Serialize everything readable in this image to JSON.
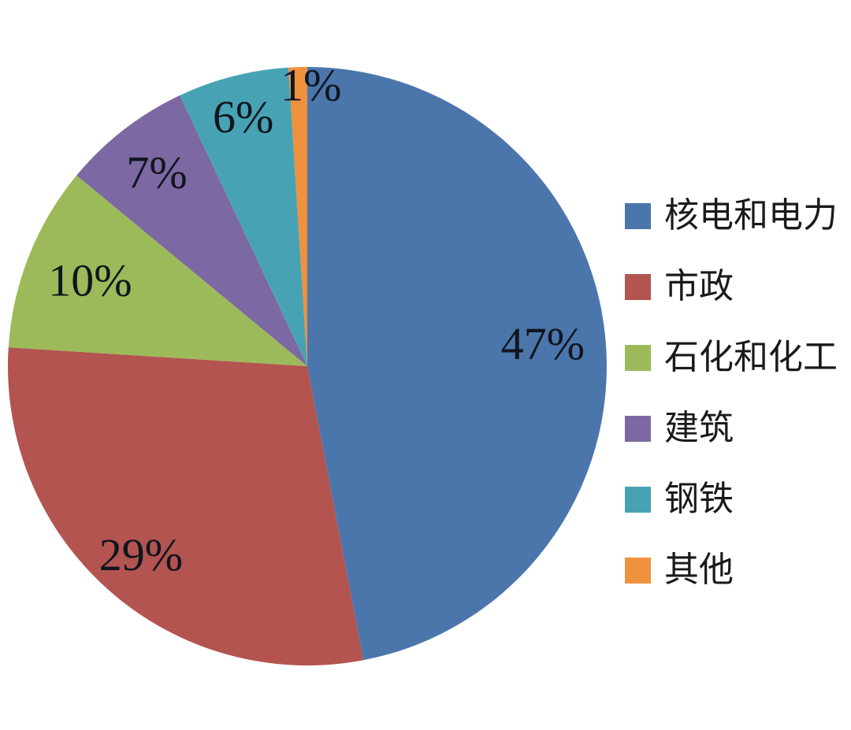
{
  "chart_data": {
    "type": "pie",
    "title": "",
    "categories": [
      "核电和电力",
      "市政",
      "石化和化工",
      "建筑",
      "钢铁",
      "其他"
    ],
    "values": [
      47,
      29,
      10,
      7,
      6,
      1
    ],
    "labels": [
      "47%",
      "29%",
      "10%",
      "7%",
      "6%",
      "1%"
    ],
    "colors": [
      "#4B76AC",
      "#B35450",
      "#9CBA5A",
      "#7C68A2",
      "#47A3B3",
      "#F0913E"
    ],
    "unit": "%",
    "start_angle_deg": 0,
    "direction": "clockwise",
    "legend_position": "right",
    "label_text_color": "#10161e",
    "background_color": "#ffffff"
  }
}
